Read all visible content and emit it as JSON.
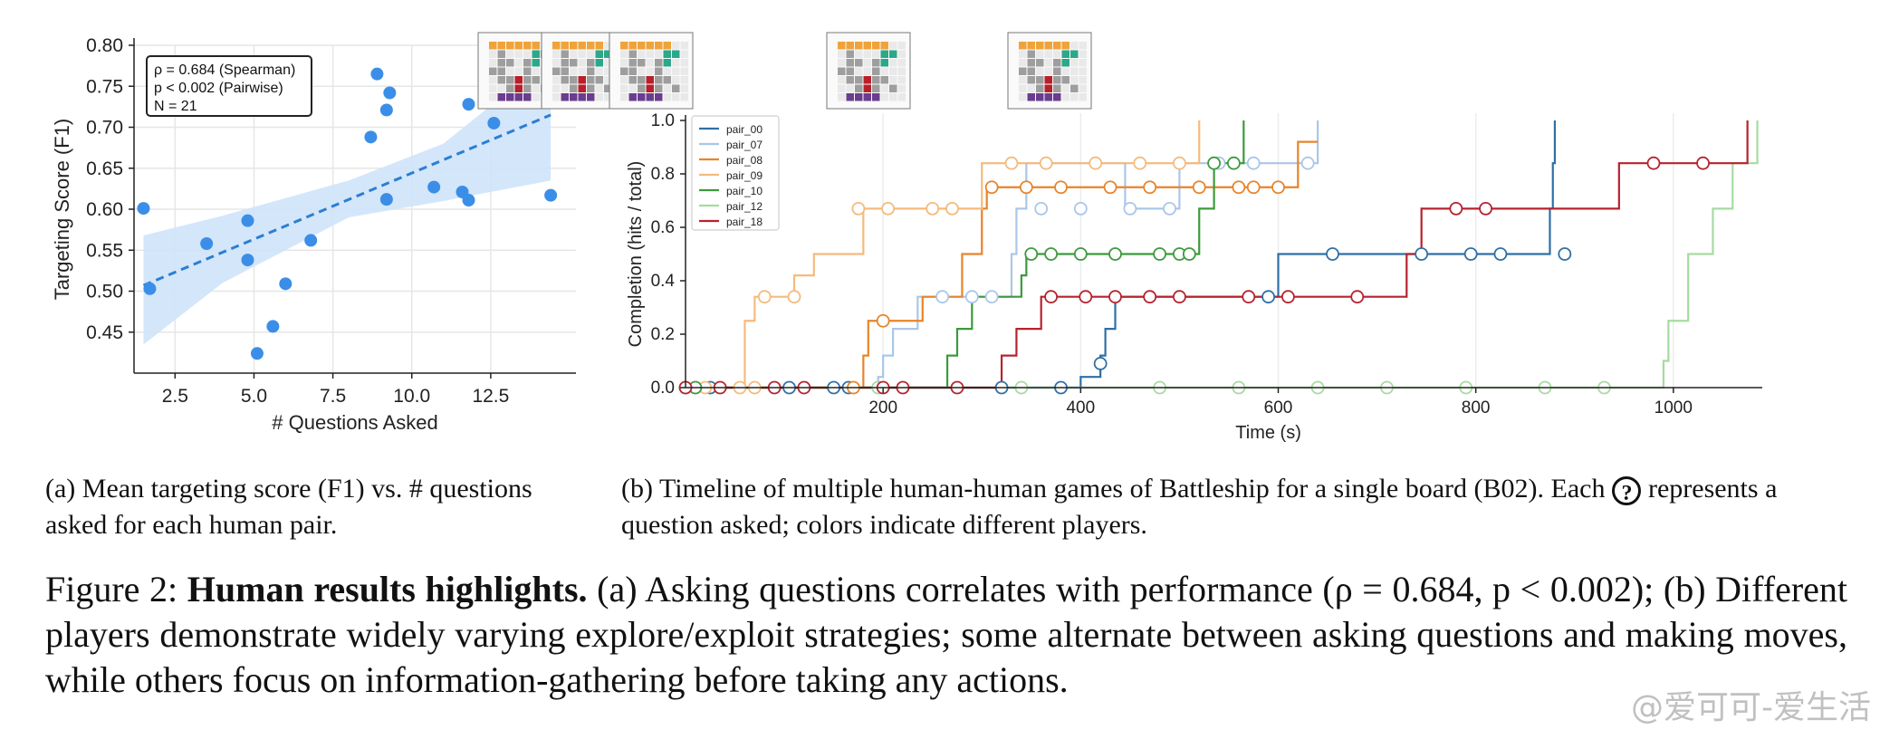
{
  "chart_data": [
    {
      "type": "scatter",
      "xlabel": "# Questions Asked",
      "ylabel": "Targeting Score (F1)",
      "xlim": [
        1.2,
        15.2
      ],
      "ylim": [
        0.4,
        0.8
      ],
      "xticks": [
        2.5,
        5.0,
        7.5,
        10.0,
        12.5
      ],
      "xtick_labels": [
        "2.5",
        "5.0",
        "7.5",
        "10.0",
        "12.5"
      ],
      "yticks": [
        0.45,
        0.5,
        0.55,
        0.6,
        0.65,
        0.7,
        0.75,
        0.8
      ],
      "ytick_labels": [
        "0.45",
        "0.50",
        "0.55",
        "0.60",
        "0.65",
        "0.70",
        "0.75",
        "0.80"
      ],
      "grid": true,
      "legend_box": [
        "ρ = 0.684 (Spearman)",
        "p < 0.002 (Pairwise)",
        "N = 21"
      ],
      "point_color": "#3b8ee8",
      "trend_color": "#2a7fd4",
      "band_color": "#cfe3f9",
      "points": [
        {
          "x": 1.5,
          "y": 0.601
        },
        {
          "x": 1.7,
          "y": 0.503
        },
        {
          "x": 3.5,
          "y": 0.558
        },
        {
          "x": 4.8,
          "y": 0.586
        },
        {
          "x": 4.8,
          "y": 0.538
        },
        {
          "x": 5.1,
          "y": 0.424
        },
        {
          "x": 5.6,
          "y": 0.457
        },
        {
          "x": 6.0,
          "y": 0.509
        },
        {
          "x": 6.8,
          "y": 0.562
        },
        {
          "x": 8.7,
          "y": 0.688
        },
        {
          "x": 8.9,
          "y": 0.765
        },
        {
          "x": 9.2,
          "y": 0.721
        },
        {
          "x": 9.3,
          "y": 0.742
        },
        {
          "x": 9.2,
          "y": 0.612
        },
        {
          "x": 10.7,
          "y": 0.627
        },
        {
          "x": 11.6,
          "y": 0.621
        },
        {
          "x": 11.8,
          "y": 0.611
        },
        {
          "x": 11.8,
          "y": 0.728
        },
        {
          "x": 12.6,
          "y": 0.705
        },
        {
          "x": 14.0,
          "y": 0.744
        },
        {
          "x": 14.4,
          "y": 0.617
        }
      ],
      "trend": {
        "x": [
          1.5,
          14.4
        ],
        "y": [
          0.507,
          0.715
        ]
      },
      "band": {
        "x": [
          1.5,
          4.0,
          8.0,
          11.0,
          14.4
        ],
        "lower": [
          0.435,
          0.51,
          0.59,
          0.61,
          0.635
        ],
        "upper": [
          0.568,
          0.592,
          0.635,
          0.68,
          0.785
        ]
      }
    },
    {
      "type": "line",
      "xlabel": "Time (s)",
      "ylabel": "Completion (hits / total)",
      "xlim": [
        0,
        1090
      ],
      "ylim": [
        0,
        1.0
      ],
      "xticks": [
        200,
        400,
        600,
        800,
        1000
      ],
      "xtick_labels": [
        "200",
        "400",
        "600",
        "800",
        "1000"
      ],
      "yticks": [
        0.0,
        0.2,
        0.4,
        0.6,
        0.8,
        1.0
      ],
      "ytick_labels": [
        "0.0",
        "0.2",
        "0.4",
        "0.6",
        "0.8",
        "1.0"
      ],
      "grid": true,
      "legend_position": "top-left",
      "series": [
        {
          "name": "pair_00",
          "color": "#2f6fa5",
          "points": [
            [
              0,
              0
            ],
            [
              400,
              0
            ],
            [
              400,
              0.04
            ],
            [
              420,
              0.04
            ],
            [
              420,
              0.12
            ],
            [
              425,
              0.12
            ],
            [
              425,
              0.22
            ],
            [
              435,
              0.22
            ],
            [
              435,
              0.34
            ],
            [
              600,
              0.34
            ],
            [
              600,
              0.5
            ],
            [
              875,
              0.5
            ],
            [
              875,
              0.67
            ],
            [
              878,
              0.67
            ],
            [
              878,
              0.84
            ],
            [
              880,
              0.84
            ],
            [
              880,
              1.0
            ]
          ],
          "questions": [
            [
              0,
              0
            ],
            [
              25,
              0
            ],
            [
              105,
              0
            ],
            [
              150,
              0
            ],
            [
              165,
              0
            ],
            [
              320,
              0
            ],
            [
              380,
              0
            ],
            [
              420,
              0.09
            ],
            [
              590,
              0.34
            ],
            [
              655,
              0.5
            ],
            [
              745,
              0.5
            ],
            [
              795,
              0.5
            ],
            [
              825,
              0.5
            ],
            [
              890,
              0.5
            ]
          ]
        },
        {
          "name": "pair_07",
          "color": "#a9c7e8",
          "points": [
            [
              0,
              0
            ],
            [
              195,
              0
            ],
            [
              195,
              0.04
            ],
            [
              200,
              0.04
            ],
            [
              200,
              0.12
            ],
            [
              210,
              0.12
            ],
            [
              210,
              0.22
            ],
            [
              235,
              0.22
            ],
            [
              235,
              0.34
            ],
            [
              330,
              0.34
            ],
            [
              330,
              0.5
            ],
            [
              335,
              0.5
            ],
            [
              335,
              0.67
            ],
            [
              345,
              0.67
            ],
            [
              345,
              0.84
            ],
            [
              445,
              0.84
            ],
            [
              445,
              0.67
            ],
            [
              500,
              0.67
            ],
            [
              500,
              0.84
            ],
            [
              640,
              0.84
            ],
            [
              640,
              1.0
            ]
          ],
          "questions": [
            [
              195,
              0
            ],
            [
              260,
              0.34
            ],
            [
              290,
              0.34
            ],
            [
              310,
              0.34
            ],
            [
              360,
              0.67
            ],
            [
              400,
              0.67
            ],
            [
              450,
              0.67
            ],
            [
              490,
              0.67
            ],
            [
              540,
              0.84
            ],
            [
              575,
              0.84
            ],
            [
              630,
              0.84
            ]
          ]
        },
        {
          "name": "pair_08",
          "color": "#e8842a",
          "points": [
            [
              0,
              0
            ],
            [
              180,
              0
            ],
            [
              180,
              0.12
            ],
            [
              185,
              0.12
            ],
            [
              185,
              0.25
            ],
            [
              240,
              0.25
            ],
            [
              240,
              0.34
            ],
            [
              280,
              0.34
            ],
            [
              280,
              0.5
            ],
            [
              300,
              0.5
            ],
            [
              300,
              0.67
            ],
            [
              305,
              0.67
            ],
            [
              305,
              0.75
            ],
            [
              620,
              0.75
            ],
            [
              620,
              0.92
            ],
            [
              640,
              0.92
            ]
          ],
          "questions": [
            [
              170,
              0
            ],
            [
              200,
              0.25
            ],
            [
              310,
              0.75
            ],
            [
              345,
              0.75
            ],
            [
              380,
              0.75
            ],
            [
              430,
              0.75
            ],
            [
              470,
              0.75
            ],
            [
              520,
              0.75
            ],
            [
              560,
              0.75
            ],
            [
              575,
              0.75
            ],
            [
              600,
              0.75
            ]
          ]
        },
        {
          "name": "pair_09",
          "color": "#f4bb7c",
          "points": [
            [
              0,
              0
            ],
            [
              60,
              0
            ],
            [
              60,
              0.25
            ],
            [
              70,
              0.25
            ],
            [
              70,
              0.34
            ],
            [
              110,
              0.34
            ],
            [
              110,
              0.42
            ],
            [
              130,
              0.42
            ],
            [
              130,
              0.5
            ],
            [
              180,
              0.5
            ],
            [
              180,
              0.67
            ],
            [
              300,
              0.67
            ],
            [
              300,
              0.84
            ],
            [
              520,
              0.84
            ],
            [
              520,
              1.0
            ]
          ],
          "questions": [
            [
              10,
              0
            ],
            [
              20,
              0
            ],
            [
              55,
              0
            ],
            [
              70,
              0
            ],
            [
              80,
              0.34
            ],
            [
              110,
              0.34
            ],
            [
              175,
              0.67
            ],
            [
              205,
              0.67
            ],
            [
              250,
              0.67
            ],
            [
              270,
              0.67
            ],
            [
              330,
              0.84
            ],
            [
              365,
              0.84
            ],
            [
              415,
              0.84
            ],
            [
              460,
              0.84
            ],
            [
              500,
              0.84
            ]
          ]
        },
        {
          "name": "pair_10",
          "color": "#3c9a3c",
          "points": [
            [
              0,
              0
            ],
            [
              265,
              0
            ],
            [
              265,
              0.12
            ],
            [
              275,
              0.12
            ],
            [
              275,
              0.22
            ],
            [
              290,
              0.22
            ],
            [
              290,
              0.34
            ],
            [
              340,
              0.34
            ],
            [
              340,
              0.42
            ],
            [
              345,
              0.42
            ],
            [
              345,
              0.5
            ],
            [
              520,
              0.5
            ],
            [
              520,
              0.67
            ],
            [
              535,
              0.67
            ],
            [
              535,
              0.84
            ],
            [
              565,
              0.84
            ],
            [
              565,
              1.0
            ]
          ],
          "questions": [
            [
              10,
              0
            ],
            [
              350,
              0.5
            ],
            [
              370,
              0.5
            ],
            [
              400,
              0.5
            ],
            [
              435,
              0.5
            ],
            [
              480,
              0.5
            ],
            [
              500,
              0.5
            ],
            [
              510,
              0.5
            ],
            [
              535,
              0.84
            ],
            [
              555,
              0.84
            ]
          ]
        },
        {
          "name": "pair_12",
          "color": "#a6dba0",
          "points": [
            [
              0,
              0
            ],
            [
              990,
              0
            ],
            [
              990,
              0.1
            ],
            [
              995,
              0.1
            ],
            [
              995,
              0.25
            ],
            [
              1015,
              0.25
            ],
            [
              1015,
              0.5
            ],
            [
              1040,
              0.5
            ],
            [
              1040,
              0.67
            ],
            [
              1060,
              0.67
            ],
            [
              1060,
              0.84
            ],
            [
              1085,
              0.84
            ],
            [
              1085,
              1.0
            ]
          ],
          "questions": [
            [
              0,
              0
            ],
            [
              195,
              0
            ],
            [
              340,
              0
            ],
            [
              480,
              0
            ],
            [
              560,
              0
            ],
            [
              640,
              0
            ],
            [
              710,
              0
            ],
            [
              790,
              0
            ],
            [
              870,
              0
            ],
            [
              930,
              0
            ]
          ]
        },
        {
          "name": "pair_18",
          "color": "#b5232e",
          "points": [
            [
              0,
              0
            ],
            [
              320,
              0
            ],
            [
              320,
              0.12
            ],
            [
              335,
              0.12
            ],
            [
              335,
              0.22
            ],
            [
              360,
              0.22
            ],
            [
              360,
              0.34
            ],
            [
              730,
              0.34
            ],
            [
              730,
              0.5
            ],
            [
              745,
              0.5
            ],
            [
              745,
              0.67
            ],
            [
              945,
              0.67
            ],
            [
              945,
              0.84
            ],
            [
              1075,
              0.84
            ],
            [
              1075,
              1.0
            ]
          ],
          "questions": [
            [
              0,
              0
            ],
            [
              35,
              0
            ],
            [
              90,
              0
            ],
            [
              120,
              0
            ],
            [
              200,
              0
            ],
            [
              220,
              0
            ],
            [
              275,
              0
            ],
            [
              370,
              0.34
            ],
            [
              405,
              0.34
            ],
            [
              435,
              0.34
            ],
            [
              470,
              0.34
            ],
            [
              500,
              0.34
            ],
            [
              570,
              0.34
            ],
            [
              610,
              0.34
            ],
            [
              680,
              0.34
            ],
            [
              780,
              0.67
            ],
            [
              810,
              0.67
            ],
            [
              980,
              0.84
            ],
            [
              1030,
              0.84
            ]
          ]
        }
      ],
      "boards_at": [
        570,
        640,
        715,
        955,
        1155
      ]
    }
  ],
  "captions": {
    "a": "(a) Mean targeting score (F1) vs. # questions asked for each human pair.",
    "b_before": "(b) Timeline of multiple human-human games of Battleship for a single board (B02). Each",
    "b_icon": "?",
    "b_after": "represents a question asked; colors indicate different players."
  },
  "figure": {
    "label": "Figure 2:",
    "bold": "Human results highlights.",
    "text": "(a) Asking questions correlates with performance (ρ = 0.684, p < 0.002); (b) Different players demonstrate widely varying explore/exploit strategies; some alternate between asking questions and making moves, while others focus on information-gathering before taking any actions."
  },
  "watermark": "@爱可可-爱生活",
  "board_colors": {
    "orange": "#f0a33a",
    "teal": "#2aa889",
    "gray": "#9e9e9e",
    "red": "#b81f2a",
    "purple": "#6a3d8f",
    "empty": "#e9e9e9"
  }
}
